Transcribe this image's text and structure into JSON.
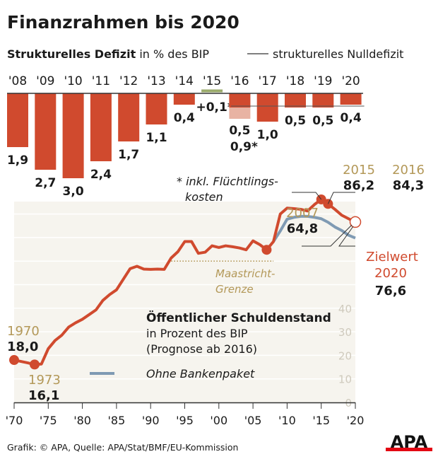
{
  "title": "Finanzrahmen bis 2020",
  "subtitle_bold": "Strukturelles Defizit",
  "subtitle_rest": " in % des BIP",
  "legend_nulldefizit": "strukturelles Nulldefizit",
  "footnote_line1": "* inkl. Flüchtlings-",
  "footnote_line2": "kosten",
  "footer": "Grafik: © APA, Quelle: APA/Stat/BMF/EU-Kommission",
  "logo": "APA",
  "colors": {
    "bar": "#d04a2e",
    "bar_light": "#e8b3a3",
    "surplus": "#9aaa6a",
    "debt_line": "#d04a2e",
    "blue_line": "#7f9ab3",
    "gold": "#b39858",
    "area_bg": "#f6f4ee"
  },
  "chart_data": [
    {
      "type": "bar",
      "title": "Strukturelles Defizit in % des BIP",
      "categories": [
        "'08",
        "'09",
        "'10",
        "'11",
        "'12",
        "'13",
        "'14",
        "'15",
        "'16",
        "'17",
        "'18",
        "'19",
        "'20"
      ],
      "values": [
        -1.9,
        -2.7,
        -3.0,
        -2.4,
        -1.7,
        -1.1,
        -0.4,
        0.1,
        -0.5,
        -1.0,
        -0.5,
        -0.5,
        -0.4
      ],
      "labels": [
        "1,9",
        "2,7",
        "3,0",
        "2,4",
        "1,7",
        "1,1",
        "0,4",
        "+0,1*",
        "0,5",
        "1,0",
        "0,5",
        "0,5",
        "0,4"
      ],
      "extra": {
        "category": "'16",
        "value_incl_refugee_costs": -0.9,
        "label": "0,9*"
      },
      "reference_line": {
        "name": "strukturelles Nulldefizit",
        "value": -0.45,
        "from": "'15",
        "to": "'20"
      }
    },
    {
      "type": "line",
      "title": "Öffentlicher Schuldenstand",
      "subtitle_line1": "in Prozent des BIP",
      "subtitle_line2": "(Prognose ab 2016)",
      "xlim": [
        1970,
        2020
      ],
      "ylim": [
        0,
        90
      ],
      "x_ticks": [
        "'70",
        "'75",
        "'80",
        "'85",
        "'90",
        "'95",
        "'00",
        "'05",
        "'10",
        "'15",
        "'20"
      ],
      "y_ticks": [
        "0",
        "10",
        "20",
        "30",
        "40"
      ],
      "grid": true,
      "series": [
        {
          "name": "Öffentlicher Schuldenstand",
          "x": [
            1970,
            1971,
            1972,
            1973,
            1974,
            1975,
            1976,
            1977,
            1978,
            1979,
            1980,
            1981,
            1982,
            1983,
            1984,
            1985,
            1986,
            1987,
            1988,
            1989,
            1990,
            1991,
            1992,
            1993,
            1994,
            1995,
            1996,
            1997,
            1998,
            1999,
            2000,
            2001,
            2002,
            2003,
            2004,
            2005,
            2006,
            2007,
            2008,
            2009,
            2010,
            2011,
            2012,
            2013,
            2014,
            2015,
            2016,
            2017,
            2018,
            2019,
            2020
          ],
          "y": [
            18.0,
            17.4,
            16.8,
            16.1,
            16.3,
            22.8,
            26.3,
            28.6,
            32.0,
            33.8,
            35.3,
            37.3,
            39.3,
            43.3,
            45.8,
            47.8,
            52.3,
            56.8,
            57.8,
            56.6,
            56.5,
            56.6,
            56.5,
            61.3,
            64.0,
            68.3,
            68.3,
            63.3,
            63.8,
            66.5,
            65.8,
            66.5,
            66.1,
            65.6,
            64.8,
            68.6,
            67.0,
            64.8,
            68.3,
            80.0,
            82.5,
            82.3,
            82.0,
            81.3,
            84.0,
            86.2,
            84.3,
            82.0,
            79.5,
            78.0,
            76.6
          ]
        },
        {
          "name": "Ohne Bankenpaket",
          "x": [
            2008,
            2009,
            2010,
            2011,
            2012,
            2013,
            2014,
            2015,
            2016,
            2017,
            2018,
            2019,
            2020
          ],
          "y": [
            68.3,
            72.8,
            77.8,
            78.6,
            79.0,
            79.0,
            78.6,
            78.0,
            76.5,
            74.5,
            73.0,
            71.0,
            69.8
          ]
        }
      ],
      "reference_line": {
        "name": "Maastricht-Grenze",
        "label_line1": "Maastricht-",
        "label_line2": "Grenze",
        "value": 60,
        "from": 1993,
        "to": 2008
      },
      "annotations": [
        {
          "year": "1970",
          "value": "18,0"
        },
        {
          "year": "1973",
          "value": "16,1"
        },
        {
          "year": "2007",
          "value": "64,8"
        },
        {
          "year": "2015",
          "value": "86,2"
        },
        {
          "year": "2016",
          "value": "84,3"
        },
        {
          "year": "2020",
          "label": "Zielwert",
          "value": "76,6"
        }
      ]
    }
  ]
}
